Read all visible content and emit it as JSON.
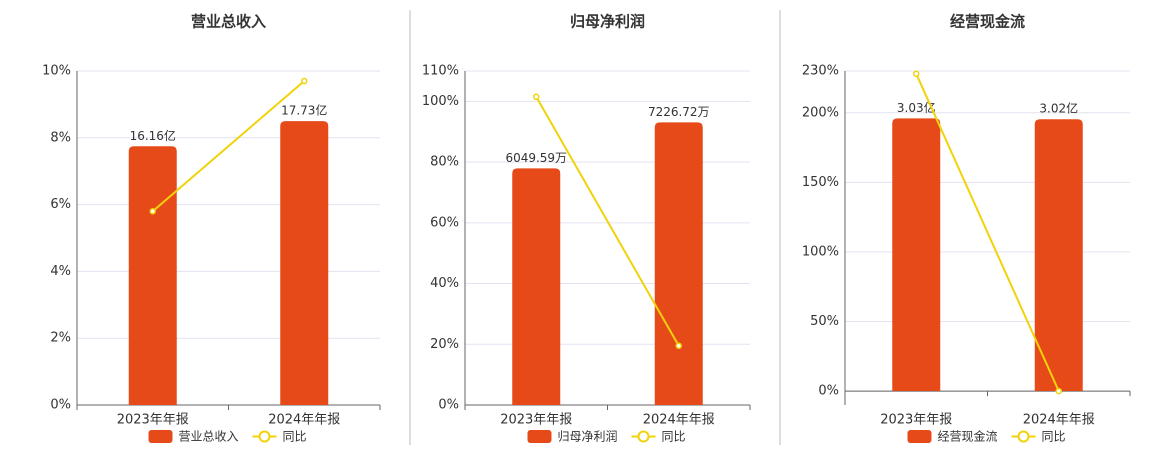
{
  "chart_data": [
    {
      "type": "combo",
      "title": "营业总收入",
      "categories": [
        "2023年年报",
        "2024年年报"
      ],
      "ylim": [
        0,
        10
      ],
      "yticks": [
        {
          "value": 0,
          "label": "0%"
        },
        {
          "value": 2,
          "label": "2%"
        },
        {
          "value": 4,
          "label": "4%"
        },
        {
          "value": 6,
          "label": "6%"
        },
        {
          "value": 8,
          "label": "8%"
        },
        {
          "value": 10,
          "label": "10%"
        }
      ],
      "y2lim": [
        0,
        20.86
      ],
      "grid": true,
      "series": [
        {
          "name": "营业总收入",
          "type": "bar",
          "axis": "y2",
          "color": "#e64a19",
          "values": [
            16.16,
            17.73
          ],
          "value_labels": [
            "16.16亿",
            "17.73亿"
          ]
        },
        {
          "name": "同比",
          "type": "line",
          "color": "#f2d20a",
          "values": [
            5.8,
            9.7
          ]
        }
      ]
    },
    {
      "type": "combo",
      "title": "归母净利润",
      "categories": [
        "2023年年报",
        "2024年年报"
      ],
      "ylim": [
        0,
        110
      ],
      "yticks": [
        {
          "value": 0,
          "label": "0%"
        },
        {
          "value": 20,
          "label": "20%"
        },
        {
          "value": 40,
          "label": "40%"
        },
        {
          "value": 60,
          "label": "60%"
        },
        {
          "value": 80,
          "label": "80%"
        },
        {
          "value": 100,
          "label": "100%"
        },
        {
          "value": 110,
          "label": "110%"
        }
      ],
      "y2lim": [
        0,
        8540
      ],
      "grid": true,
      "series": [
        {
          "name": "归母净利润",
          "type": "bar",
          "axis": "y2",
          "color": "#e64a19",
          "values": [
            6049.59,
            7226.72
          ],
          "value_labels": [
            "6049.59万",
            "7226.72万"
          ]
        },
        {
          "name": "同比",
          "type": "line",
          "color": "#f2d20a",
          "values": [
            101.5,
            19.5
          ]
        }
      ]
    },
    {
      "type": "combo",
      "title": "经营现金流",
      "categories": [
        "2023年年报",
        "2024年年报"
      ],
      "ylim": [
        -10,
        230
      ],
      "yticks": [
        {
          "value": 0,
          "label": "0%"
        },
        {
          "value": 50,
          "label": "50%"
        },
        {
          "value": 100,
          "label": "100%"
        },
        {
          "value": 150,
          "label": "150%"
        },
        {
          "value": 200,
          "label": "200%"
        },
        {
          "value": 230,
          "label": "230%"
        }
      ],
      "y2lim": [
        -0.155,
        3.556
      ],
      "grid": true,
      "series": [
        {
          "name": "经营现金流",
          "type": "bar",
          "axis": "y2",
          "color": "#e64a19",
          "values": [
            3.03,
            3.02
          ],
          "value_labels": [
            "3.03亿",
            "3.02亿"
          ]
        },
        {
          "name": "同比",
          "type": "line",
          "color": "#f2d20a",
          "values": [
            228,
            0
          ]
        }
      ]
    }
  ]
}
